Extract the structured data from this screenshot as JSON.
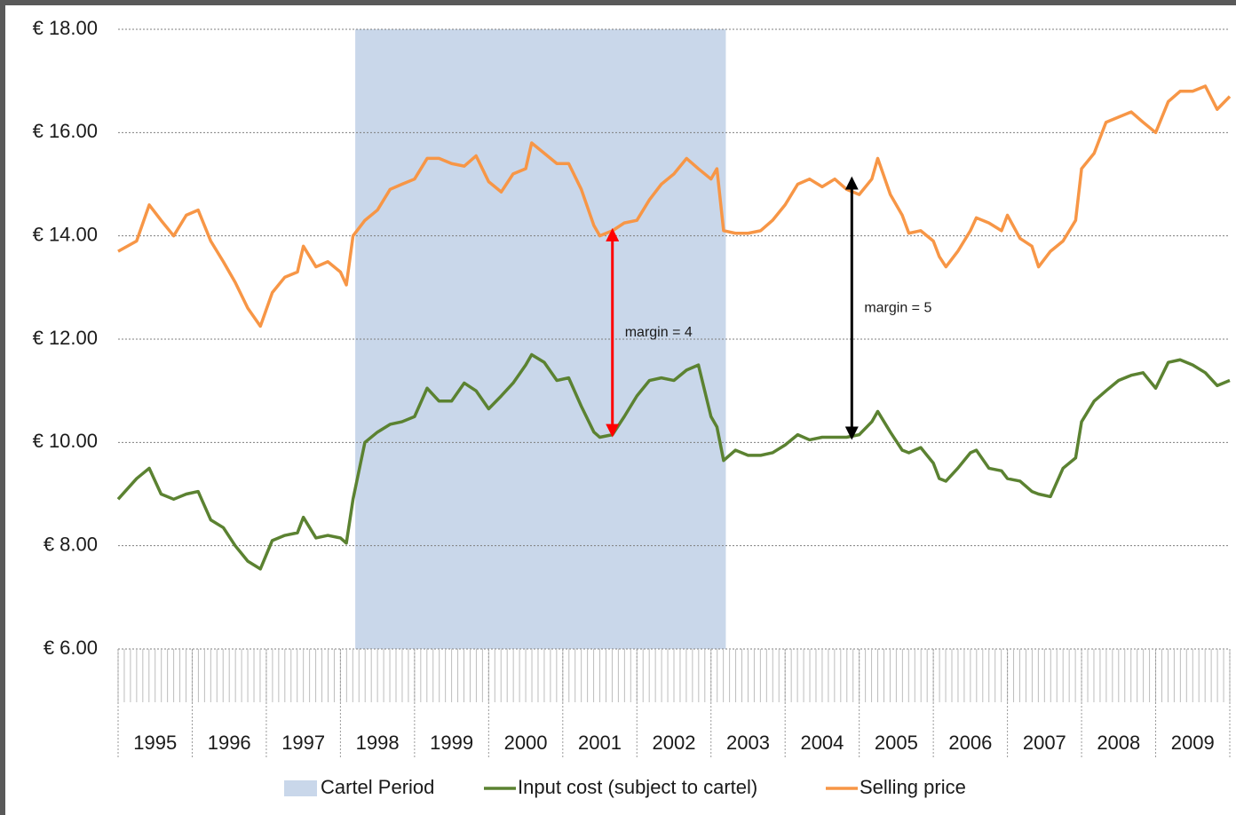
{
  "chart_data": {
    "type": "line",
    "x": [
      1995.0,
      1995.25,
      1995.42,
      1995.58,
      1995.75,
      1995.92,
      1996.08,
      1996.25,
      1996.42,
      1996.58,
      1996.75,
      1996.92,
      1997.08,
      1997.25,
      1997.42,
      1997.5,
      1997.67,
      1997.83,
      1998.0,
      1998.08,
      1998.17,
      1998.33,
      1998.5,
      1998.67,
      1998.83,
      1999.0,
      1999.17,
      1999.33,
      1999.5,
      1999.67,
      1999.83,
      2000.0,
      2000.17,
      2000.33,
      2000.5,
      2000.58,
      2000.75,
      2000.92,
      2001.08,
      2001.25,
      2001.42,
      2001.5,
      2001.67,
      2001.83,
      2002.0,
      2002.17,
      2002.33,
      2002.5,
      2002.67,
      2002.83,
      2003.0,
      2003.08,
      2003.17,
      2003.33,
      2003.5,
      2003.67,
      2003.83,
      2004.0,
      2004.17,
      2004.33,
      2004.5,
      2004.67,
      2004.83,
      2005.0,
      2005.17,
      2005.25,
      2005.42,
      2005.58,
      2005.67,
      2005.83,
      2006.0,
      2006.08,
      2006.17,
      2006.33,
      2006.5,
      2006.58,
      2006.75,
      2006.92,
      2007.0,
      2007.17,
      2007.33,
      2007.42,
      2007.58,
      2007.75,
      2007.92,
      2008.0,
      2008.17,
      2008.33,
      2008.5,
      2008.67,
      2008.83,
      2009.0,
      2009.17,
      2009.33,
      2009.5,
      2009.67,
      2009.83,
      2010.0
    ],
    "series": [
      {
        "name": "Input cost (subject to cartel)",
        "color": "#5b8231",
        "values": [
          8.9,
          9.3,
          9.5,
          9.0,
          8.9,
          9.0,
          9.05,
          8.5,
          8.35,
          8.0,
          7.7,
          7.55,
          8.1,
          8.2,
          8.25,
          8.55,
          8.15,
          8.2,
          8.15,
          8.05,
          8.9,
          10.0,
          10.2,
          10.35,
          10.4,
          10.5,
          11.05,
          10.8,
          10.8,
          11.15,
          11.0,
          10.65,
          10.9,
          11.15,
          11.5,
          11.7,
          11.55,
          11.2,
          11.25,
          10.7,
          10.2,
          10.1,
          10.15,
          10.5,
          10.9,
          11.2,
          11.25,
          11.2,
          11.4,
          11.5,
          10.5,
          10.3,
          9.65,
          9.85,
          9.75,
          9.75,
          9.8,
          9.95,
          10.15,
          10.05,
          10.1,
          10.1,
          10.1,
          10.15,
          10.4,
          10.6,
          10.2,
          9.85,
          9.8,
          9.9,
          9.6,
          9.3,
          9.25,
          9.5,
          9.8,
          9.85,
          9.5,
          9.45,
          9.3,
          9.25,
          9.05,
          9.0,
          8.95,
          9.5,
          9.7,
          10.4,
          10.8,
          11.0,
          11.2,
          11.3,
          11.35,
          11.05,
          11.55,
          11.6,
          11.5,
          11.35,
          11.1,
          11.2
        ]
      },
      {
        "name": "Selling price",
        "color": "#f79646",
        "values": [
          13.7,
          13.9,
          14.6,
          14.3,
          14.0,
          14.4,
          14.5,
          13.9,
          13.5,
          13.1,
          12.6,
          12.25,
          12.9,
          13.2,
          13.3,
          13.8,
          13.4,
          13.5,
          13.3,
          13.05,
          14.0,
          14.3,
          14.5,
          14.9,
          15.0,
          15.1,
          15.5,
          15.5,
          15.4,
          15.35,
          15.55,
          15.05,
          14.85,
          15.2,
          15.3,
          15.8,
          15.6,
          15.4,
          15.4,
          14.9,
          14.2,
          14.0,
          14.1,
          14.25,
          14.3,
          14.7,
          15.0,
          15.2,
          15.5,
          15.3,
          15.1,
          15.3,
          14.1,
          14.05,
          14.05,
          14.1,
          14.3,
          14.6,
          15.0,
          15.1,
          14.95,
          15.1,
          14.9,
          14.8,
          15.1,
          15.5,
          14.8,
          14.4,
          14.05,
          14.1,
          13.9,
          13.6,
          13.4,
          13.7,
          14.1,
          14.35,
          14.25,
          14.1,
          14.4,
          13.95,
          13.8,
          13.4,
          13.7,
          13.9,
          14.3,
          15.3,
          15.6,
          16.2,
          16.3,
          16.4,
          16.2,
          16.0,
          16.6,
          16.8,
          16.8,
          16.9,
          16.45,
          16.7
        ]
      }
    ],
    "cartel_period": {
      "name": "Cartel Period",
      "color": "#c9d7ea",
      "x": [
        1998.2,
        2003.2
      ]
    },
    "annotations": [
      {
        "text": "margin = 4",
        "color": "#ff0000",
        "x": 2001.67,
        "y": [
          10.15,
          14.1
        ]
      },
      {
        "text": "margin = 5",
        "color": "#000000",
        "x": 2004.9,
        "y": [
          10.1,
          15.1
        ]
      }
    ],
    "xlim": [
      1995,
      2010
    ],
    "ylim": [
      6,
      18
    ],
    "yticks": [
      {
        "value": 6,
        "label": "€ 6.00"
      },
      {
        "value": 8,
        "label": "€ 8.00"
      },
      {
        "value": 10,
        "label": "€ 10.00"
      },
      {
        "value": 12,
        "label": "€ 12.00"
      },
      {
        "value": 14,
        "label": "€ 14.00"
      },
      {
        "value": 16,
        "label": "€ 16.00"
      },
      {
        "value": 18,
        "label": "€ 18.00"
      }
    ],
    "xticks": [
      {
        "value": 1995.5,
        "label": "1995"
      },
      {
        "value": 1996.5,
        "label": "1996"
      },
      {
        "value": 1997.5,
        "label": "1997"
      },
      {
        "value": 1998.5,
        "label": "1998"
      },
      {
        "value": 1999.5,
        "label": "1999"
      },
      {
        "value": 2000.5,
        "label": "2000"
      },
      {
        "value": 2001.5,
        "label": "2001"
      },
      {
        "value": 2002.5,
        "label": "2002"
      },
      {
        "value": 2003.5,
        "label": "2003"
      },
      {
        "value": 2004.5,
        "label": "2004"
      },
      {
        "value": 2005.5,
        "label": "2005"
      },
      {
        "value": 2006.5,
        "label": "2006"
      },
      {
        "value": 2007.5,
        "label": "2007"
      },
      {
        "value": 2008.5,
        "label": "2008"
      },
      {
        "value": 2009.5,
        "label": "2009"
      }
    ],
    "grid": true
  }
}
